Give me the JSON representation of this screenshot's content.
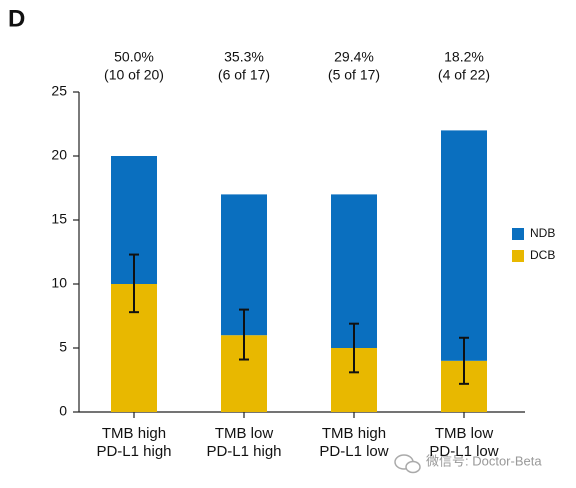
{
  "chart_data": {
    "type": "bar",
    "stacked": true,
    "panel_label": "D",
    "categories": [
      [
        "TMB high",
        "PD-L1 high"
      ],
      [
        "TMB low",
        "PD-L1 high"
      ],
      [
        "TMB high",
        "PD-L1 low"
      ],
      [
        "TMB low",
        "PD-L1 low"
      ]
    ],
    "top_labels": [
      [
        "50.0%",
        "(10 of 20)"
      ],
      [
        "35.3%",
        "(6 of 17)"
      ],
      [
        "29.4%",
        "(5 of 17)"
      ],
      [
        "18.2%",
        "(4 of 22)"
      ]
    ],
    "series": [
      {
        "name": "DCB",
        "color": "#e8b800",
        "values": [
          10,
          6,
          5,
          4
        ]
      },
      {
        "name": "NDB",
        "color": "#0a6fbf",
        "values": [
          10,
          11,
          12,
          18
        ]
      }
    ],
    "error_low": [
      7.8,
      4.1,
      3.1,
      2.2
    ],
    "error_high": [
      12.3,
      8.0,
      6.9,
      5.8
    ],
    "ylim": [
      0,
      25
    ],
    "yticks": [
      0,
      5,
      10,
      15,
      20,
      25
    ],
    "legend": "right",
    "watermark": "微信号: Doctor-Beta"
  }
}
